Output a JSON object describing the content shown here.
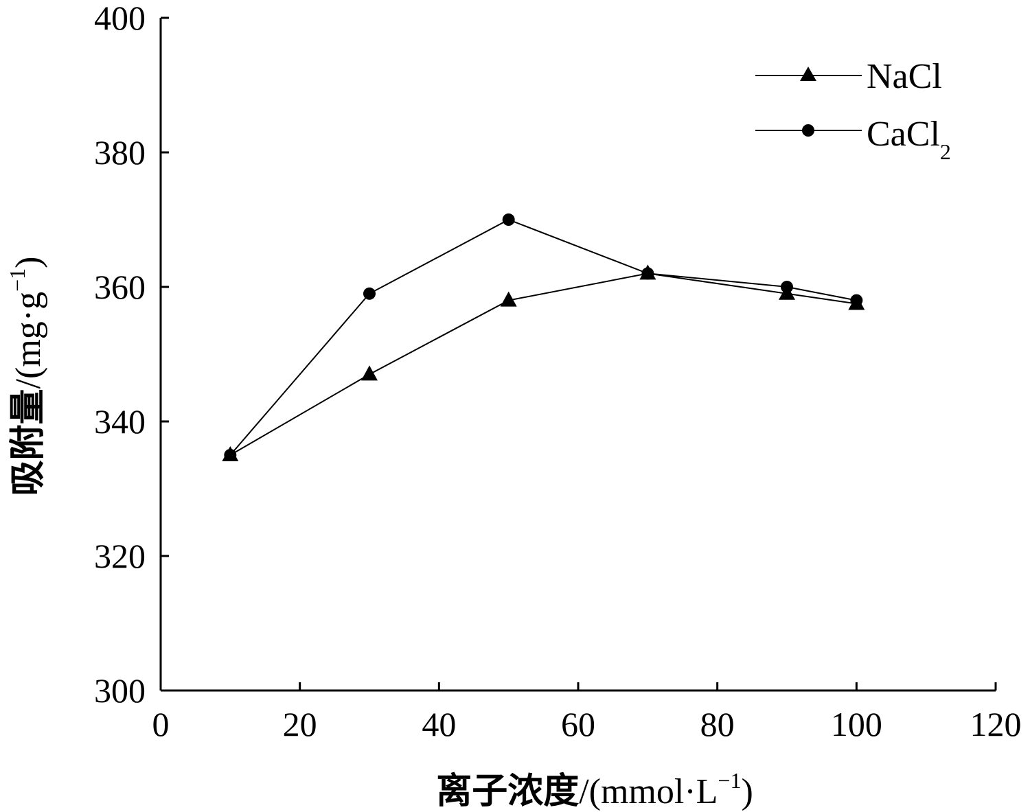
{
  "chart_data": {
    "type": "line",
    "title": "",
    "xlabel": {
      "text_cn": "离子浓度",
      "unit_open": "/(mmol·L",
      "unit_sup": "−1",
      "unit_close": ")"
    },
    "ylabel": {
      "text_cn": "吸附量",
      "unit_open": "/(mg·g",
      "unit_sup": "−1",
      "unit_close": ")"
    },
    "xlim": [
      0,
      120
    ],
    "ylim": [
      300,
      400
    ],
    "x_ticks": [
      0,
      20,
      40,
      60,
      80,
      100,
      120
    ],
    "y_ticks": [
      300,
      320,
      340,
      360,
      380,
      400
    ],
    "grid": false,
    "legend_position": "top-right",
    "series": [
      {
        "name": "NaCl",
        "name_base": "NaCl",
        "name_sub": "",
        "marker": "triangle",
        "color": "#000000",
        "x": [
          10,
          30,
          50,
          70,
          90,
          100
        ],
        "values": [
          335,
          347,
          358,
          362,
          359,
          357.5
        ]
      },
      {
        "name": "CaCl2",
        "name_base": "CaCl",
        "name_sub": "2",
        "marker": "circle",
        "color": "#000000",
        "x": [
          10,
          30,
          50,
          70,
          90,
          100
        ],
        "values": [
          335,
          359,
          370,
          362,
          360,
          358
        ]
      }
    ]
  }
}
